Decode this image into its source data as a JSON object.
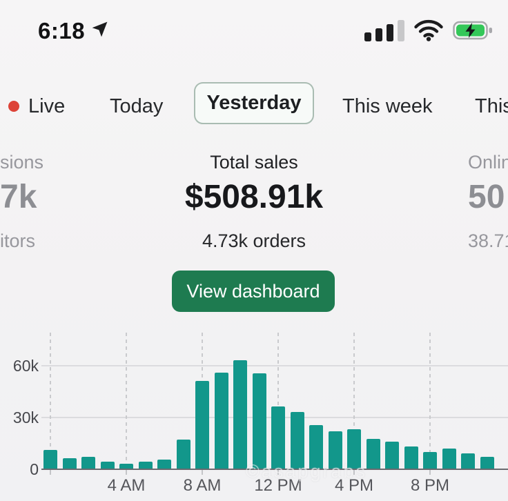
{
  "status_bar": {
    "time": "6:18",
    "icons": [
      "location-arrow-icon",
      "cellular-signal-icon",
      "wifi-icon",
      "battery-charging-icon"
    ],
    "signal_bars_filled": 3,
    "signal_bars_total": 4,
    "battery_charging": true
  },
  "tabs": {
    "items": [
      {
        "label": "Live",
        "selected": false,
        "live_dot_color": "#dd4338"
      },
      {
        "label": "Today",
        "selected": false
      },
      {
        "label": "Yesterday",
        "selected": true
      },
      {
        "label": "This week",
        "selected": false
      },
      {
        "label": "This",
        "selected": false,
        "truncated_at_right_edge": true
      }
    ]
  },
  "stats": {
    "left_partial": {
      "label_fragment": "sions",
      "value_fragment": "7k",
      "sub_fragment": "itors"
    },
    "center": {
      "label": "Total sales",
      "value": "$508.91k",
      "sub": "4.73k orders"
    },
    "right_partial": {
      "label_fragment": "Onlin",
      "value_fragment": "50",
      "sub_fragment": "38.71"
    }
  },
  "cta": {
    "label": "View dashboard",
    "bg_color": "#1e7b50"
  },
  "watermark": {
    "text": "©asapgrabs"
  },
  "chart_data": {
    "type": "bar",
    "title": "",
    "xlabel": "",
    "ylabel": "",
    "unit": "k",
    "x": [
      "12 AM",
      "1 AM",
      "2 AM",
      "3 AM",
      "4 AM",
      "5 AM",
      "6 AM",
      "7 AM",
      "8 AM",
      "9 AM",
      "10 AM",
      "11 AM",
      "12 PM",
      "1 PM",
      "2 PM",
      "3 PM",
      "4 PM",
      "5 PM",
      "6 PM",
      "7 PM",
      "8 PM",
      "9 PM",
      "10 PM",
      "11 PM"
    ],
    "values": [
      11,
      6.5,
      7,
      4.5,
      3,
      4.5,
      5.5,
      17,
      51,
      56,
      63,
      55.5,
      36.5,
      33,
      25.5,
      22,
      23,
      17.5,
      16,
      13,
      10,
      12,
      9,
      7
    ],
    "ylim": [
      0,
      80
    ],
    "y_ticks": [
      {
        "value": 0,
        "label": "0"
      },
      {
        "value": 30,
        "label": "30k"
      },
      {
        "value": 60,
        "label": "60k"
      }
    ],
    "x_tick_labels": [
      {
        "index": 4,
        "label": "4 AM"
      },
      {
        "index": 8,
        "label": "8 AM"
      },
      {
        "index": 12,
        "label": "12 PM"
      },
      {
        "index": 16,
        "label": "4 PM"
      },
      {
        "index": 20,
        "label": "8 PM"
      }
    ],
    "gridline_indices": [
      0,
      4,
      8,
      12,
      16,
      20
    ],
    "bar_color": "#12978b",
    "grid": true,
    "legend": false
  }
}
